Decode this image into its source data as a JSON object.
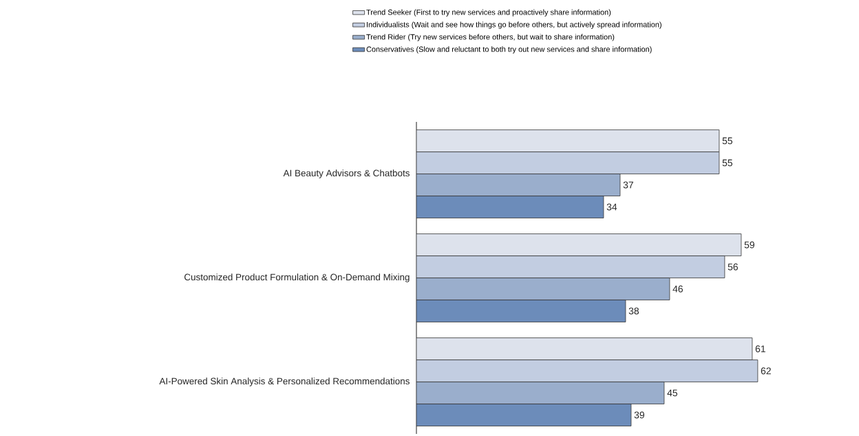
{
  "chart_data": {
    "type": "bar",
    "orientation": "horizontal",
    "data_labels": true,
    "legend": "top",
    "categories": [
      "AI Beauty Advisors & Chatbots",
      "Customized Product Formulation & On-Demand Mixing",
      "AI-Powered Skin Analysis & Personalized Recommendations"
    ],
    "series": [
      {
        "name": "Trend Seeker (First to try new services and proactively share information)",
        "color": "#dde2ec",
        "values": [
          55,
          59,
          61
        ]
      },
      {
        "name": "Individualists (Wait and see how things go before others, but actively spread information)",
        "color": "#c2cde1",
        "values": [
          55,
          56,
          62
        ]
      },
      {
        "name": "Trend Rider (Try new services before others, but wait to share information)",
        "color": "#9aaecc",
        "values": [
          37,
          46,
          45
        ]
      },
      {
        "name": "Conservatives (Slow and reluctant to both try out new services and share information)",
        "color": "#6c8cba",
        "values": [
          34,
          38,
          39
        ]
      }
    ]
  }
}
